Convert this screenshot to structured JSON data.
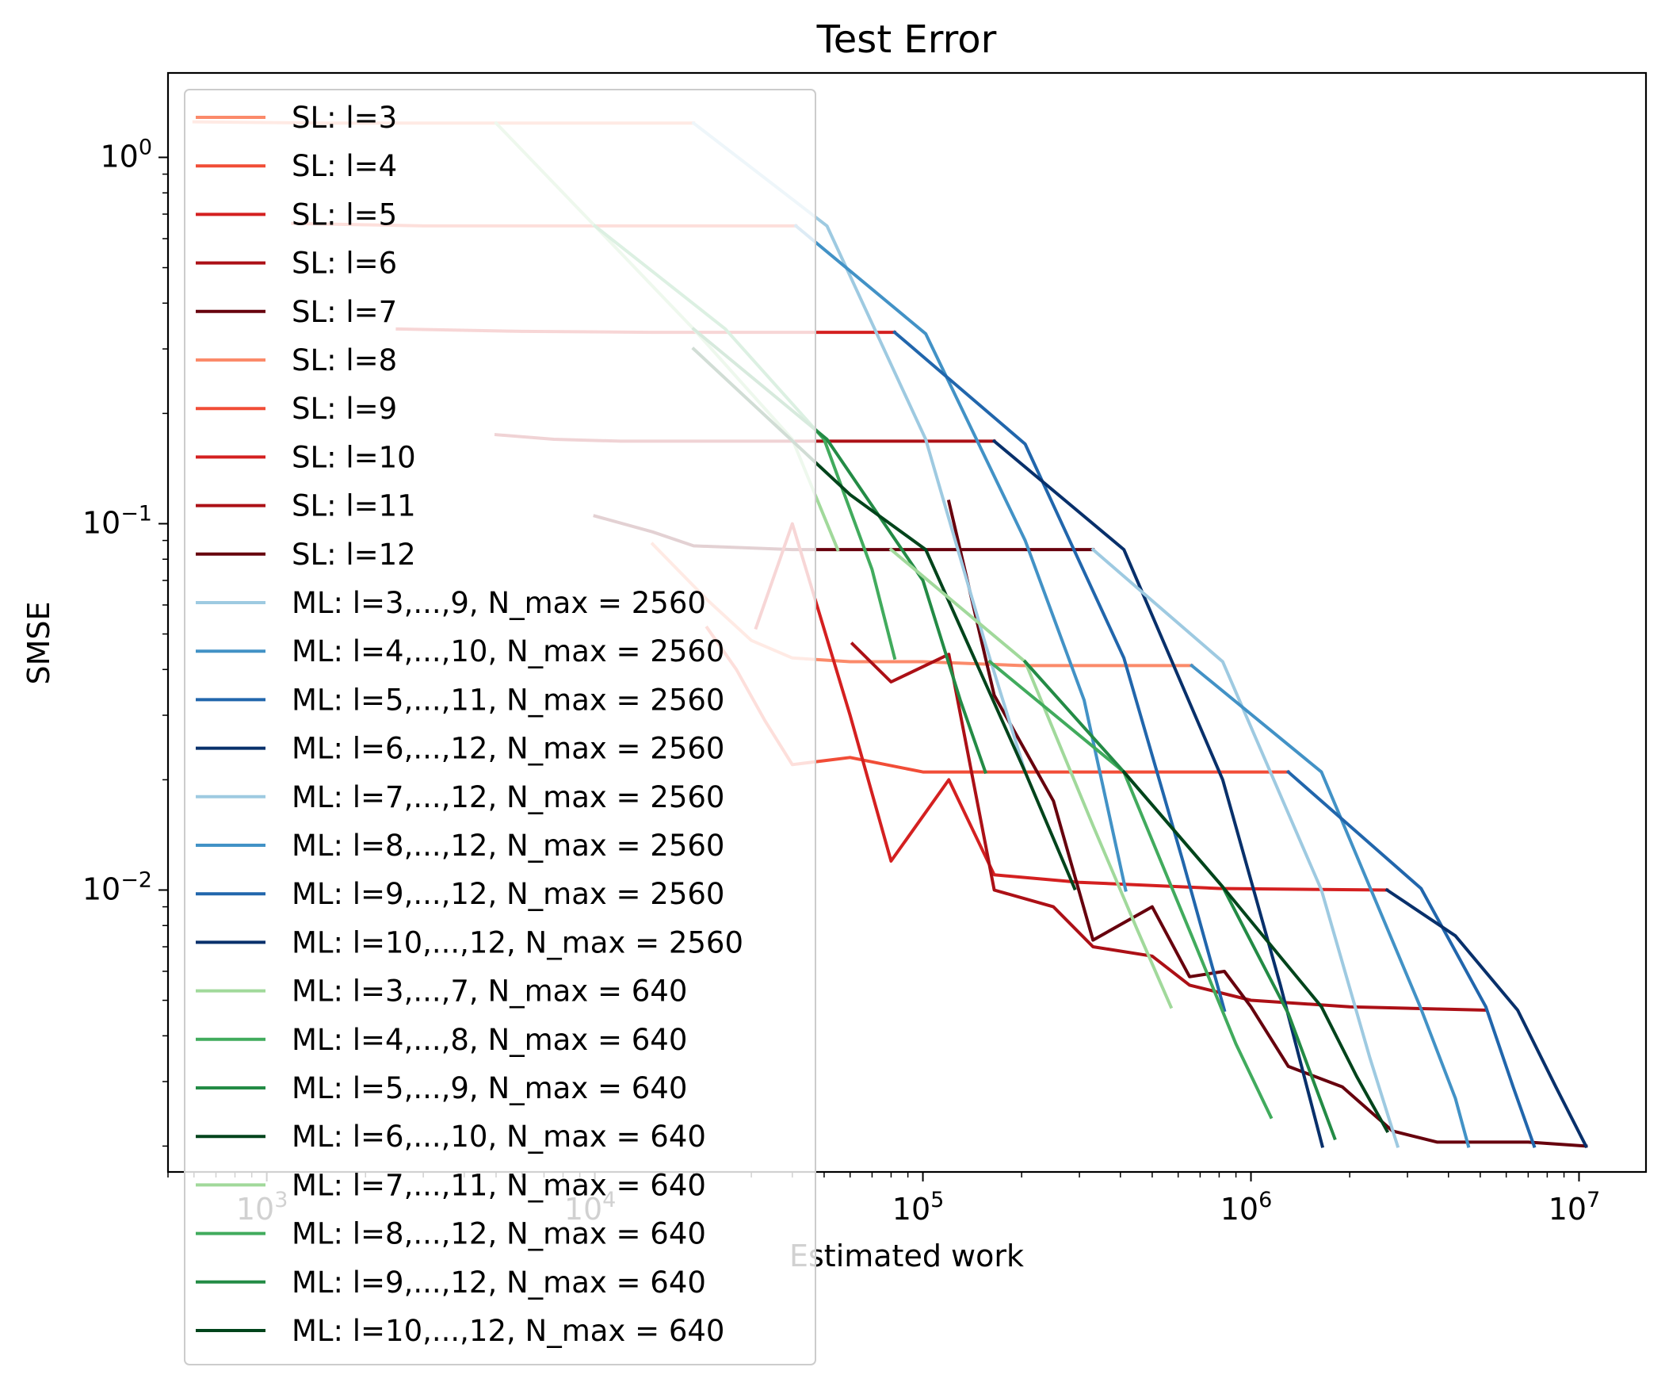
{
  "chart_data": {
    "type": "line",
    "title": "Test Error",
    "xlabel": "Estimated work",
    "ylabel": "SMSE",
    "xscale": "log",
    "yscale": "log",
    "xlim": [
      500,
      16000000
    ],
    "ylim": [
      0.0017,
      1.7
    ],
    "xticks": [
      {
        "value": 1000,
        "base": "10",
        "exp": "3"
      },
      {
        "value": 10000,
        "base": "10",
        "exp": "4"
      },
      {
        "value": 100000,
        "base": "10",
        "exp": "5"
      },
      {
        "value": 1000000,
        "base": "10",
        "exp": "6"
      },
      {
        "value": 10000000,
        "base": "10",
        "exp": "7"
      }
    ],
    "yticks": [
      {
        "value": 1,
        "base": "10",
        "exp": "0"
      },
      {
        "value": 0.1,
        "base": "10",
        "exp": "−1"
      },
      {
        "value": 0.01,
        "base": "10",
        "exp": "−2"
      }
    ],
    "grid": false,
    "legend_position": "upper-left",
    "series": [
      {
        "name": "SL: l=3",
        "color": "#fb8a6a",
        "x": [
          600,
          1500,
          4000,
          10000,
          20000
        ],
        "y": [
          1.25,
          1.24,
          1.24,
          1.24,
          1.24
        ]
      },
      {
        "name": "SL: l=4",
        "color": "#f14d37",
        "x": [
          1200,
          3000,
          8000,
          20000,
          41000
        ],
        "y": [
          0.66,
          0.65,
          0.65,
          0.65,
          0.65
        ]
      },
      {
        "name": "SL: l=5",
        "color": "#d42020",
        "x": [
          2500,
          6000,
          15000,
          40000,
          82000
        ],
        "y": [
          0.34,
          0.335,
          0.333,
          0.333,
          0.333
        ]
      },
      {
        "name": "SL: l=6",
        "color": "#ac1016",
        "x": [
          5000,
          7500,
          12000,
          30000,
          80000,
          165000
        ],
        "y": [
          0.175,
          0.17,
          0.168,
          0.168,
          0.168,
          0.168
        ]
      },
      {
        "name": "SL: l=7",
        "color": "#67000d",
        "x": [
          10000,
          15000,
          20000,
          40000,
          80000,
          160000,
          330000
        ],
        "y": [
          0.105,
          0.095,
          0.087,
          0.085,
          0.085,
          0.085,
          0.085
        ]
      },
      {
        "name": "SL: l=8",
        "color": "#fb8a6a",
        "x": [
          15000,
          22000,
          30000,
          40000,
          60000,
          100000,
          200000,
          400000,
          660000
        ],
        "y": [
          0.088,
          0.062,
          0.048,
          0.043,
          0.042,
          0.042,
          0.041,
          0.041,
          0.041
        ]
      },
      {
        "name": "SL: l=9",
        "color": "#f14d37",
        "x": [
          22000,
          27000,
          33000,
          40000,
          60000,
          100000,
          200000,
          500000,
          1300000
        ],
        "y": [
          0.052,
          0.04,
          0.029,
          0.022,
          0.023,
          0.021,
          0.021,
          0.021,
          0.021
        ]
      },
      {
        "name": "SL: l=10",
        "color": "#d42020",
        "x": [
          31000,
          40000,
          60000,
          80000,
          120000,
          165000,
          300000,
          800000,
          2600000
        ],
        "y": [
          0.052,
          0.1,
          0.03,
          0.012,
          0.02,
          0.011,
          0.0105,
          0.0101,
          0.01
        ]
      },
      {
        "name": "SL: l=11",
        "color": "#ac1016",
        "x": [
          61000,
          80000,
          120000,
          165000,
          250000,
          330000,
          500000,
          650000,
          1000000,
          2000000,
          5200000
        ],
        "y": [
          0.047,
          0.037,
          0.044,
          0.01,
          0.009,
          0.007,
          0.0066,
          0.0055,
          0.005,
          0.0048,
          0.0047
        ]
      },
      {
        "name": "SL: l=12",
        "color": "#67000d",
        "x": [
          120000,
          165000,
          250000,
          330000,
          500000,
          650000,
          830000,
          1000000,
          1300000,
          1900000,
          2700000,
          3700000,
          7000000,
          10500000
        ],
        "y": [
          0.115,
          0.034,
          0.0175,
          0.0073,
          0.009,
          0.0058,
          0.006,
          0.0048,
          0.0033,
          0.0029,
          0.0022,
          0.00205,
          0.00205,
          0.002
        ]
      },
      {
        "name": "ML: l=3,...,9, N_max = 2560",
        "color": "#9ecae1",
        "x": [
          20000,
          51000,
          102000,
          155000,
          205000
        ],
        "y": [
          1.24,
          0.65,
          0.17,
          0.047,
          0.021
        ]
      },
      {
        "name": "ML: l=4,...,10, N_max = 2560",
        "color": "#4292c6",
        "x": [
          41000,
          102000,
          205000,
          310000,
          415000
        ],
        "y": [
          0.65,
          0.33,
          0.09,
          0.033,
          0.01
        ]
      },
      {
        "name": "ML: l=5,...,11, N_max = 2560",
        "color": "#2166ac",
        "x": [
          82000,
          205000,
          410000,
          620000,
          830000
        ],
        "y": [
          0.333,
          0.165,
          0.043,
          0.012,
          0.0047
        ]
      },
      {
        "name": "ML: l=6,...,12, N_max = 2560",
        "color": "#08306b",
        "x": [
          165000,
          410000,
          820000,
          1230000,
          1650000
        ],
        "y": [
          0.168,
          0.085,
          0.02,
          0.0055,
          0.002
        ]
      },
      {
        "name": "ML: l=7,...,12, N_max = 2560",
        "color": "#9ecae1",
        "x": [
          330000,
          820000,
          1640000,
          2300000,
          2800000
        ],
        "y": [
          0.085,
          0.042,
          0.01,
          0.0035,
          0.002
        ]
      },
      {
        "name": "ML: l=8,...,12, N_max = 2560",
        "color": "#4292c6",
        "x": [
          660000,
          1640000,
          3280000,
          4200000,
          4600000
        ],
        "y": [
          0.041,
          0.021,
          0.0048,
          0.0027,
          0.002
        ]
      },
      {
        "name": "ML: l=9,...,12, N_max = 2560",
        "color": "#2166ac",
        "x": [
          1300000,
          3300000,
          5200000,
          6300000,
          7300000
        ],
        "y": [
          0.021,
          0.0101,
          0.0048,
          0.0029,
          0.002
        ]
      },
      {
        "name": "ML: l=10,...,12, N_max = 2560",
        "color": "#08306b",
        "x": [
          2600000,
          4200000,
          6500000,
          8500000,
          10500000
        ],
        "y": [
          0.01,
          0.0075,
          0.0047,
          0.0029,
          0.002
        ]
      },
      {
        "name": "ML: l=3,...,7, N_max = 640",
        "color": "#a1d99b",
        "x": [
          5000,
          10000,
          20000,
          40000,
          55000
        ],
        "y": [
          1.24,
          0.65,
          0.34,
          0.17,
          0.085
        ]
      },
      {
        "name": "ML: l=4,...,8, N_max = 640",
        "color": "#41ab5d",
        "x": [
          10000,
          25000,
          50000,
          70000,
          82000
        ],
        "y": [
          0.65,
          0.34,
          0.17,
          0.075,
          0.043
        ]
      },
      {
        "name": "ML: l=5,...,9, N_max = 640",
        "color": "#238b45",
        "x": [
          20000,
          51000,
          100000,
          130000,
          155000
        ],
        "y": [
          0.34,
          0.17,
          0.07,
          0.033,
          0.021
        ]
      },
      {
        "name": "ML: l=6,...,10, N_max = 640",
        "color": "#00441b",
        "x": [
          20000,
          60000,
          102000,
          205000,
          290000
        ],
        "y": [
          0.3,
          0.12,
          0.085,
          0.021,
          0.0101
        ]
      },
      {
        "name": "ML: l=7,...,11, N_max = 640",
        "color": "#a1d99b",
        "x": [
          80000,
          205000,
          330000,
          450000,
          570000
        ],
        "y": [
          0.085,
          0.042,
          0.015,
          0.0078,
          0.0048
        ]
      },
      {
        "name": "ML: l=8,...,12, N_max = 640",
        "color": "#41ab5d",
        "x": [
          160000,
          410000,
          660000,
          900000,
          1150000
        ],
        "y": [
          0.042,
          0.021,
          0.0075,
          0.0038,
          0.0024
        ]
      },
      {
        "name": "ML: l=9,...,12, N_max = 640",
        "color": "#238b45",
        "x": [
          205000,
          410000,
          820000,
          1300000,
          1800000
        ],
        "y": [
          0.042,
          0.021,
          0.0102,
          0.0046,
          0.0021
        ]
      },
      {
        "name": "ML: l=10,...,12, N_max = 640",
        "color": "#00441b",
        "x": [
          410000,
          820000,
          1640000,
          2100000,
          2600000
        ],
        "y": [
          0.021,
          0.0102,
          0.0048,
          0.0031,
          0.0022
        ]
      }
    ]
  }
}
